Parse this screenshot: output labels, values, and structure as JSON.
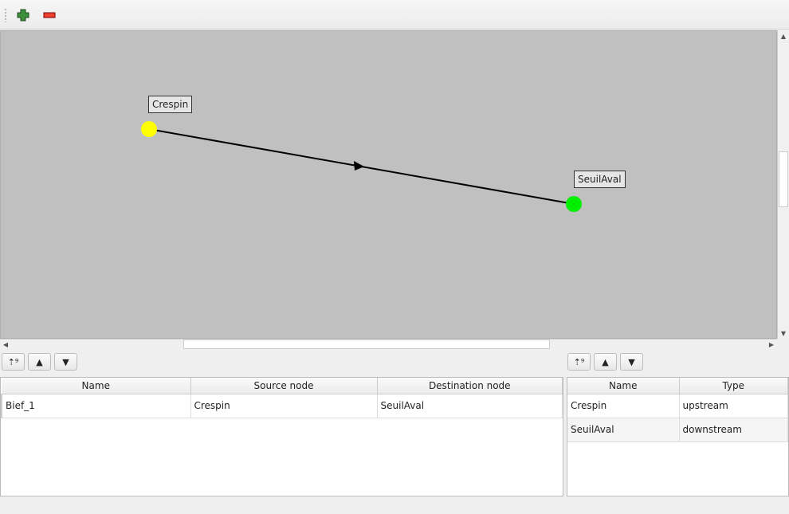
{
  "toolbar": {
    "add_icon": "green-plus-icon",
    "remove_icon": "red-minus-icon"
  },
  "graph": {
    "nodes": [
      {
        "name": "Crespin",
        "color": "#ffff00"
      },
      {
        "name": "SeuilAval",
        "color": "#00ee00"
      }
    ],
    "edges": [
      {
        "name": "Bief_1",
        "from": "Crespin",
        "to": "SeuilAval"
      }
    ],
    "background": "#c0c0c0"
  },
  "reaches_table": {
    "columns": [
      "Name",
      "Source node",
      "Destination node"
    ],
    "rows": [
      [
        "Bief_1",
        "Crespin",
        "SeuilAval"
      ]
    ]
  },
  "nodes_table": {
    "columns": [
      "Name",
      "Type"
    ],
    "rows": [
      [
        "Crespin",
        "upstream"
      ],
      [
        "SeuilAval",
        "downstream"
      ]
    ]
  }
}
